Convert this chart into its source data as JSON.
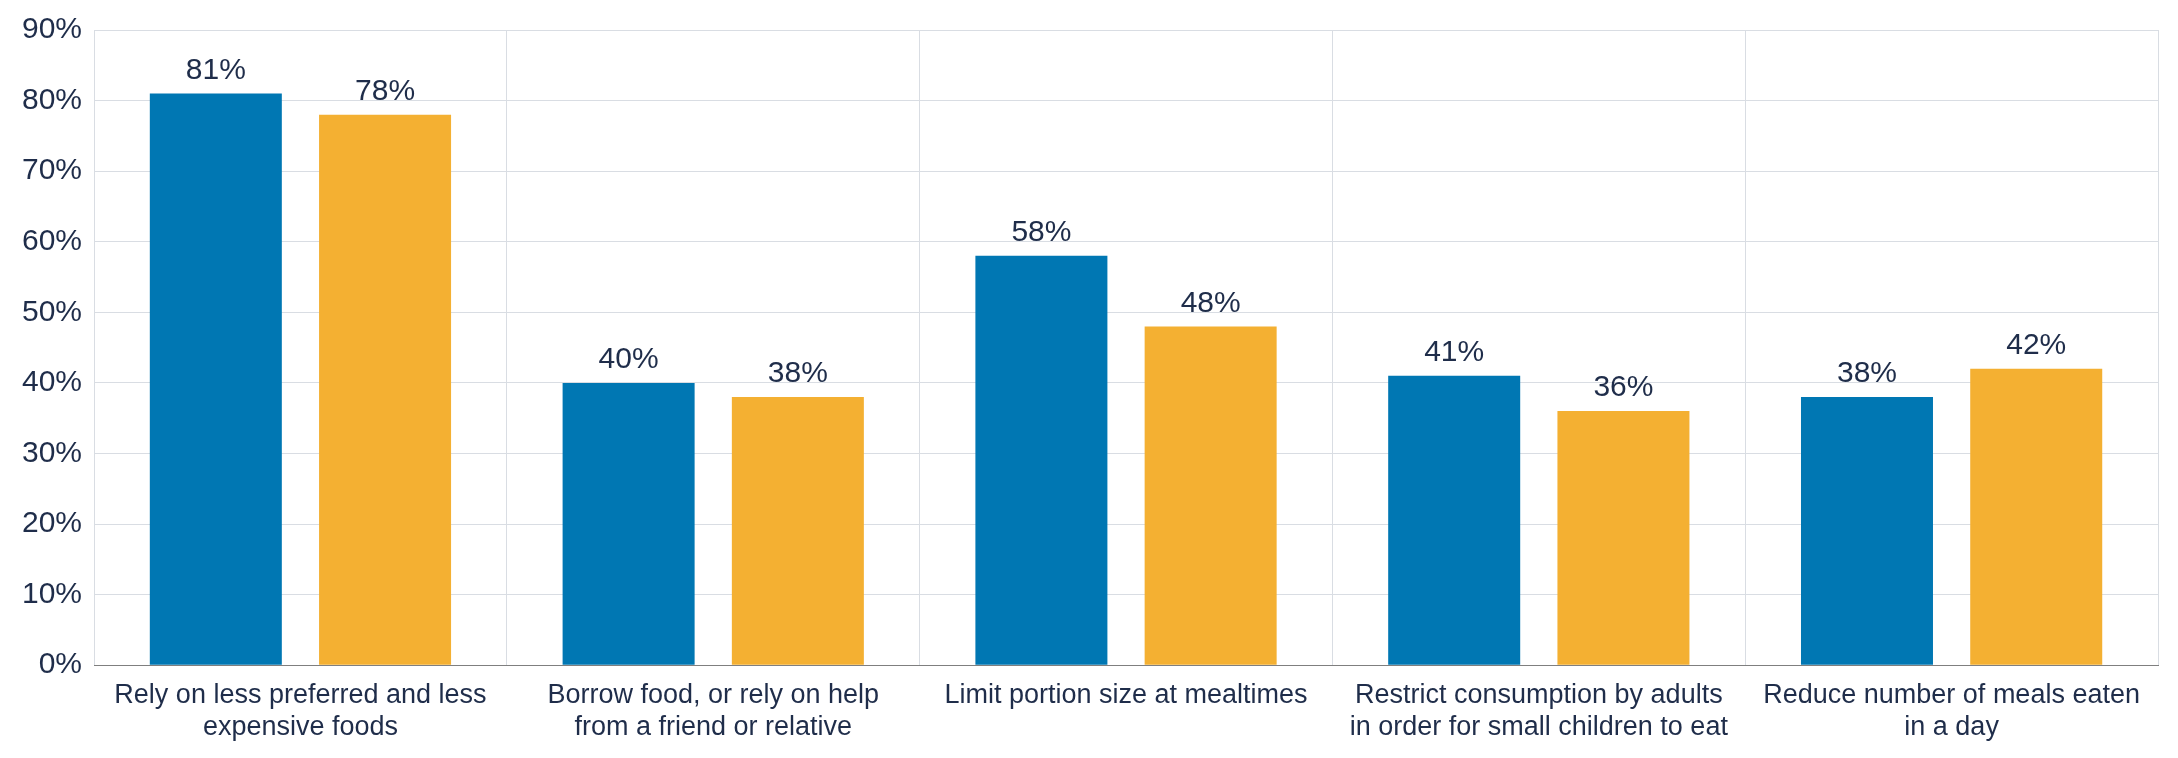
{
  "chart_data": {
    "type": "bar",
    "categories": [
      "Rely on less preferred and less expensive foods",
      "Borrow food, or rely on help from a friend or relative",
      "Limit portion size at mealtimes",
      "Restrict consumption by adults in order for small children to eat",
      "Reduce number of meals eaten in a day"
    ],
    "series": [
      {
        "color": "#0077b3",
        "values": [
          81,
          40,
          58,
          41,
          38
        ]
      },
      {
        "color": "#f4b032",
        "values": [
          78,
          38,
          48,
          36,
          42
        ]
      }
    ],
    "ylim": [
      0,
      90
    ],
    "yticks": [
      {
        "value": 0,
        "label": "0%"
      },
      {
        "value": 10,
        "label": "10%"
      },
      {
        "value": 20,
        "label": "20%"
      },
      {
        "value": 30,
        "label": "30%"
      },
      {
        "value": 40,
        "label": "40%"
      },
      {
        "value": 50,
        "label": "50%"
      },
      {
        "value": 60,
        "label": "60%"
      },
      {
        "value": 70,
        "label": "70%"
      },
      {
        "value": 80,
        "label": "80%"
      },
      {
        "value": 90,
        "label": "90%"
      }
    ],
    "value_labels": [
      [
        "81%",
        "40%",
        "58%",
        "41%",
        "38%"
      ],
      [
        "78%",
        "38%",
        "48%",
        "36%",
        "42%"
      ]
    ],
    "grid": true,
    "legend": false
  }
}
